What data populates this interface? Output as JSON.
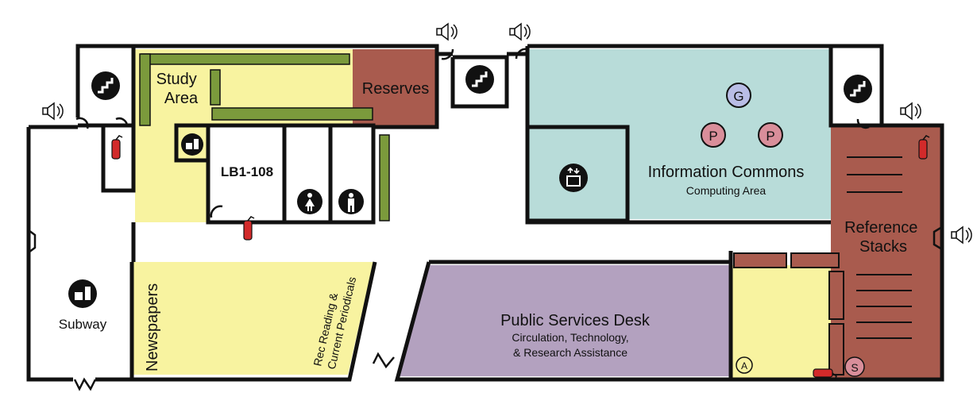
{
  "rooms": {
    "study_area": "Study\nArea",
    "reserves": "Reserves",
    "lb1_108": "LB1-108",
    "information_commons": "Information Commons",
    "computing_area": "Computing Area",
    "reference_stacks": "Reference\nStacks",
    "subway": "Subway",
    "newspapers": "Newspapers",
    "rec_reading": "Rec Reading &\nCurrent Periodicals",
    "public_services_desk": "Public Services Desk",
    "psd_line1": "Circulation, Technology,",
    "psd_line2": "& Research Assistance"
  },
  "markers": {
    "g": "G",
    "p": "P",
    "a": "A",
    "s": "S"
  },
  "colors": {
    "study_yellow": "#f8f3a0",
    "reserves_brown": "#a95b4e",
    "commons_teal": "#b8dcd9",
    "shelf_green": "#7b9a3c",
    "desk_purple": "#b3a1bf",
    "marker_g": "#b9bde6",
    "marker_p": "#d98e9a",
    "extinguisher_red": "#d22a2a"
  },
  "icons": [
    "stairs-icon",
    "speaker-icon",
    "fire-extinguisher-icon",
    "elevator-icon",
    "restroom-women-icon",
    "restroom-men-icon",
    "food-icon"
  ]
}
